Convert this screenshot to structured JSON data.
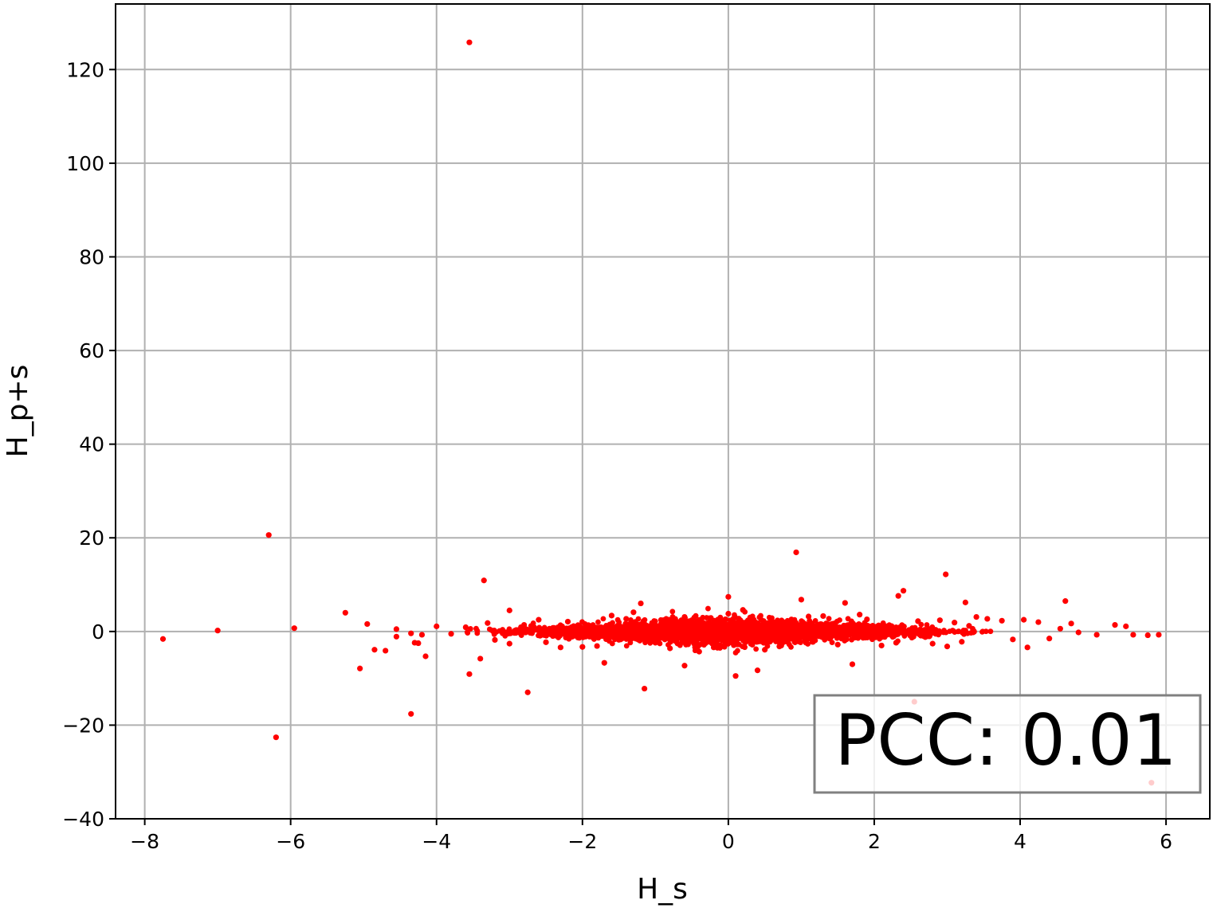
{
  "chart_data": {
    "type": "scatter",
    "xlabel": "H_s",
    "ylabel": "H_p+s",
    "xlim": [
      -8.4,
      6.6
    ],
    "ylim": [
      -40,
      134
    ],
    "xticks": [
      -8,
      -6,
      -4,
      -2,
      0,
      2,
      4,
      6
    ],
    "xtick_labels": [
      "−8",
      "−6",
      "−4",
      "−2",
      "0",
      "2",
      "4",
      "6"
    ],
    "yticks": [
      -40,
      -20,
      0,
      20,
      40,
      60,
      80,
      100,
      120
    ],
    "ytick_labels": [
      "−40",
      "−20",
      "0",
      "20",
      "40",
      "60",
      "80",
      "100",
      "120"
    ],
    "grid": true,
    "marker_color": "#ff0000",
    "annotation": {
      "text": "PCC: 0.01",
      "placement": "bottom-right"
    },
    "series": [
      {
        "points": [
          [
            -3.55,
            125.8
          ],
          [
            -6.3,
            20.6
          ],
          [
            0.93,
            16.9
          ],
          [
            2.98,
            12.2
          ],
          [
            -3.35,
            10.9
          ],
          [
            2.4,
            8.7
          ],
          [
            2.33,
            7.6
          ],
          [
            0.0,
            7.4
          ],
          [
            4.62,
            6.5
          ],
          [
            1.0,
            6.8
          ],
          [
            1.6,
            6.1
          ],
          [
            -1.2,
            6.0
          ],
          [
            -5.25,
            4.0
          ],
          [
            -3.0,
            4.5
          ],
          [
            3.25,
            6.2
          ],
          [
            -4.95,
            1.6
          ],
          [
            -5.95,
            0.7
          ],
          [
            -7.0,
            0.2
          ],
          [
            -7.75,
            -1.6
          ],
          [
            -4.0,
            1.1
          ],
          [
            -4.55,
            0.5
          ],
          [
            -4.2,
            -0.7
          ],
          [
            -4.55,
            -1.1
          ],
          [
            -4.35,
            -0.4
          ],
          [
            -4.25,
            -2.5
          ],
          [
            -4.15,
            -5.3
          ],
          [
            -4.3,
            -2.4
          ],
          [
            -5.05,
            -7.9
          ],
          [
            -4.85,
            -3.9
          ],
          [
            -4.7,
            -4.1
          ],
          [
            -4.35,
            -17.6
          ],
          [
            -6.2,
            -22.6
          ],
          [
            -3.55,
            -9.1
          ],
          [
            -3.4,
            -5.8
          ],
          [
            -2.75,
            -13.0
          ],
          [
            -1.15,
            -12.2
          ],
          [
            -1.7,
            -6.7
          ],
          [
            -0.6,
            -7.3
          ],
          [
            0.1,
            -9.5
          ],
          [
            0.4,
            -8.3
          ],
          [
            1.7,
            -7.0
          ],
          [
            2.55,
            -15.0
          ],
          [
            5.8,
            -32.3
          ],
          [
            3.0,
            -3.2
          ],
          [
            4.1,
            -3.4
          ],
          [
            3.9,
            -1.7
          ],
          [
            4.4,
            -1.5
          ],
          [
            4.7,
            1.7
          ],
          [
            5.05,
            -0.7
          ],
          [
            5.3,
            1.4
          ],
          [
            5.45,
            1.1
          ],
          [
            5.75,
            -0.8
          ],
          [
            5.9,
            -0.7
          ],
          [
            5.55,
            -0.7
          ],
          [
            4.8,
            -0.2
          ],
          [
            4.55,
            0.6
          ],
          [
            4.25,
            2.0
          ],
          [
            4.05,
            2.5
          ],
          [
            3.75,
            2.3
          ],
          [
            3.55,
            2.7
          ],
          [
            3.4,
            3.1
          ],
          [
            3.2,
            -2.2
          ],
          [
            3.3,
            1.2
          ],
          [
            2.9,
            2.4
          ],
          [
            2.7,
            -1.2
          ],
          [
            -2.8,
            1.4
          ],
          [
            -2.5,
            -2.3
          ],
          [
            -2.2,
            2.1
          ],
          [
            -1.8,
            -3.1
          ],
          [
            -1.4,
            2.7
          ],
          [
            -1.0,
            -2.4
          ],
          [
            -0.6,
            3.1
          ],
          [
            -0.2,
            -3.4
          ],
          [
            0.3,
            3.0
          ],
          [
            0.7,
            -3.2
          ],
          [
            1.1,
            3.2
          ],
          [
            1.5,
            -2.8
          ],
          [
            1.9,
            2.6
          ],
          [
            2.3,
            -2.4
          ],
          [
            2.6,
            2.2
          ],
          [
            -3.2,
            -1.8
          ],
          [
            -3.6,
            0.9
          ],
          [
            -3.8,
            -0.5
          ],
          [
            -3.0,
            -2.6
          ],
          [
            -2.6,
            2.5
          ],
          [
            -2.0,
            -3.3
          ],
          [
            -1.6,
            3.4
          ],
          [
            -0.8,
            -3.6
          ],
          [
            0.0,
            3.8
          ],
          [
            0.5,
            -3.9
          ],
          [
            1.3,
            3.3
          ],
          [
            2.1,
            -3.0
          ],
          [
            -1.3,
            4.1
          ],
          [
            0.2,
            4.6
          ],
          [
            -0.4,
            -4.3
          ],
          [
            1.8,
            3.6
          ],
          [
            -2.3,
            -3.4
          ],
          [
            2.8,
            -2.6
          ],
          [
            3.1,
            1.9
          ],
          [
            -3.3,
            1.8
          ]
        ]
      }
    ],
    "dense_cluster": {
      "x_range": [
        -3.6,
        3.6
      ],
      "y_center": 0,
      "y_spread": 2.5,
      "count": 3000
    }
  }
}
